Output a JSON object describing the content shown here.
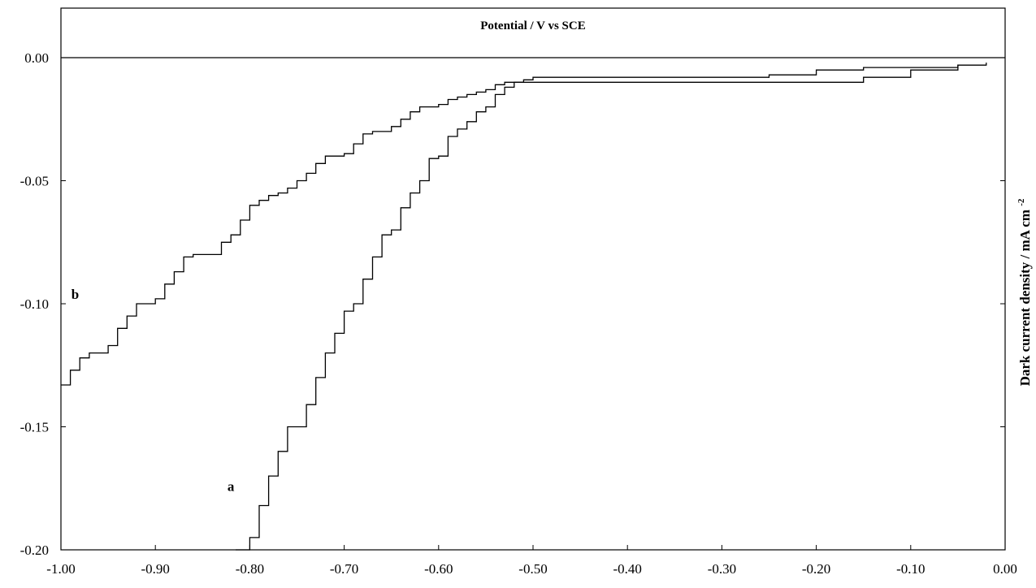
{
  "chart_data": {
    "type": "line",
    "title": "Potential / V vs SCE",
    "xlabel": "Potential / V vs SCE",
    "ylabel": "Dark current density / mA cm",
    "ylabel_sup": "-2",
    "xlim": [
      -1.0,
      0.0
    ],
    "ylim": [
      -0.2,
      0.0
    ],
    "x_ticks": [
      "-1.00",
      "-0.90",
      "-0.80",
      "-0.70",
      "-0.60",
      "-0.50",
      "-0.40",
      "-0.30",
      "-0.20",
      "-0.10",
      "0.00"
    ],
    "y_ticks": [
      "0.00",
      "-0.05",
      "-0.10",
      "-0.15",
      "-0.20"
    ],
    "grid": false,
    "series": [
      {
        "name": "a",
        "line_color": "#000000",
        "x": [
          -0.815,
          -0.8,
          -0.79,
          -0.78,
          -0.77,
          -0.76,
          -0.75,
          -0.74,
          -0.73,
          -0.72,
          -0.71,
          -0.7,
          -0.69,
          -0.68,
          -0.67,
          -0.66,
          -0.65,
          -0.64,
          -0.63,
          -0.62,
          -0.61,
          -0.6,
          -0.59,
          -0.58,
          -0.57,
          -0.56,
          -0.55,
          -0.54,
          -0.53,
          -0.52,
          -0.51,
          -0.5,
          -0.49,
          -0.48,
          -0.47,
          -0.46,
          -0.45,
          -0.44,
          -0.43,
          -0.4,
          -0.3,
          -0.25,
          -0.2,
          -0.15,
          -0.1,
          -0.05,
          -0.02
        ],
        "y": [
          -0.2,
          -0.195,
          -0.182,
          -0.17,
          -0.16,
          -0.15,
          -0.15,
          -0.141,
          -0.13,
          -0.12,
          -0.112,
          -0.103,
          -0.1,
          -0.09,
          -0.081,
          -0.072,
          -0.07,
          -0.061,
          -0.055,
          -0.05,
          -0.041,
          -0.04,
          -0.032,
          -0.029,
          -0.026,
          -0.022,
          -0.02,
          -0.015,
          -0.012,
          -0.01,
          -0.01,
          -0.01,
          -0.01,
          -0.01,
          -0.01,
          -0.01,
          -0.01,
          -0.01,
          -0.01,
          -0.01,
          -0.01,
          -0.01,
          -0.01,
          -0.008,
          -0.005,
          -0.003,
          -0.002
        ]
      },
      {
        "name": "b",
        "line_color": "#000000",
        "x": [
          -1.0,
          -0.99,
          -0.98,
          -0.97,
          -0.96,
          -0.95,
          -0.94,
          -0.93,
          -0.92,
          -0.91,
          -0.9,
          -0.89,
          -0.88,
          -0.87,
          -0.86,
          -0.85,
          -0.84,
          -0.83,
          -0.82,
          -0.81,
          -0.8,
          -0.79,
          -0.78,
          -0.77,
          -0.76,
          -0.75,
          -0.74,
          -0.73,
          -0.72,
          -0.71,
          -0.7,
          -0.69,
          -0.68,
          -0.67,
          -0.66,
          -0.65,
          -0.64,
          -0.63,
          -0.62,
          -0.61,
          -0.6,
          -0.59,
          -0.58,
          -0.57,
          -0.56,
          -0.55,
          -0.54,
          -0.53,
          -0.52,
          -0.51,
          -0.5,
          -0.49,
          -0.48,
          -0.45,
          -0.4,
          -0.35,
          -0.3,
          -0.25,
          -0.2,
          -0.15,
          -0.1,
          -0.05,
          -0.02
        ],
        "y": [
          -0.133,
          -0.127,
          -0.122,
          -0.12,
          -0.12,
          -0.117,
          -0.11,
          -0.105,
          -0.1,
          -0.1,
          -0.098,
          -0.092,
          -0.087,
          -0.081,
          -0.08,
          -0.08,
          -0.08,
          -0.075,
          -0.072,
          -0.066,
          -0.06,
          -0.058,
          -0.056,
          -0.055,
          -0.053,
          -0.05,
          -0.047,
          -0.043,
          -0.04,
          -0.04,
          -0.039,
          -0.035,
          -0.031,
          -0.03,
          -0.03,
          -0.028,
          -0.025,
          -0.022,
          -0.02,
          -0.02,
          -0.019,
          -0.017,
          -0.016,
          -0.015,
          -0.014,
          -0.013,
          -0.011,
          -0.01,
          -0.01,
          -0.009,
          -0.008,
          -0.008,
          -0.008,
          -0.008,
          -0.008,
          -0.008,
          -0.008,
          -0.007,
          -0.005,
          -0.004,
          -0.004,
          -0.003,
          -0.003
        ]
      }
    ],
    "annotations": [
      {
        "text": "a",
        "x": -0.82,
        "y": -0.176
      },
      {
        "text": "b",
        "x": -0.985,
        "y": -0.098
      }
    ]
  }
}
